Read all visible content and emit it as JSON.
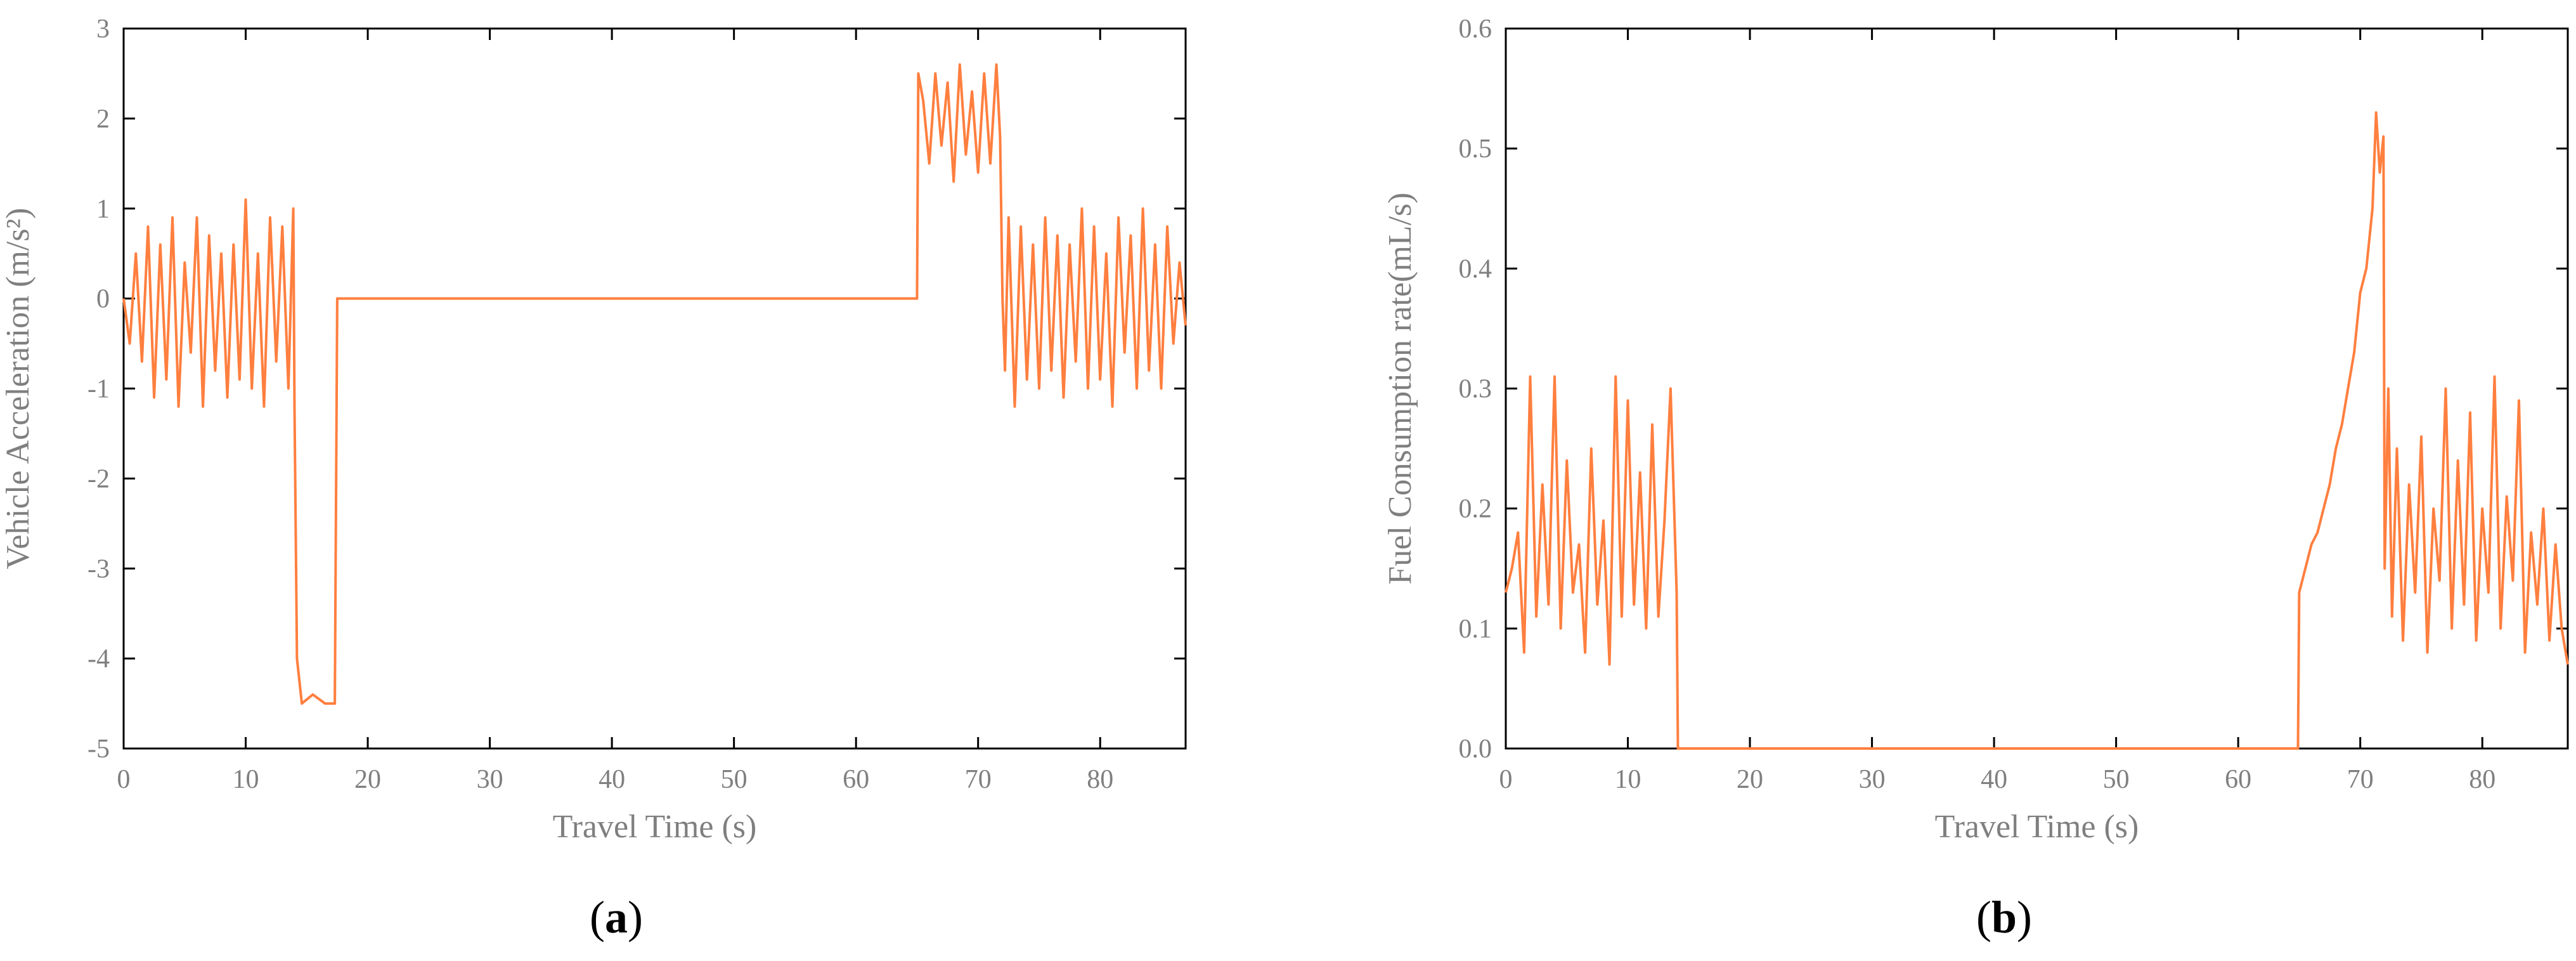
{
  "figure": {
    "captions": [
      "a",
      "b"
    ]
  },
  "chart_data": [
    {
      "type": "line",
      "xlabel": "Travel Time (s)",
      "ylabel": "Vehicle Acceleration (m/s²)",
      "xlim": [
        0,
        87
      ],
      "ylim": [
        -5,
        3
      ],
      "xticks": [
        0,
        10,
        20,
        30,
        40,
        50,
        60,
        70,
        80
      ],
      "yticks": [
        -5,
        -4,
        -3,
        -2,
        -1,
        0,
        1,
        2,
        3
      ],
      "color": "#ff7f3f",
      "series": [
        {
          "x": [
            0,
            0.5,
            1,
            1.5,
            2,
            2.5,
            3,
            3.5,
            4,
            4.5,
            5,
            5.5,
            6,
            6.5,
            7,
            7.5,
            8,
            8.5,
            9,
            9.5,
            10,
            10.5,
            11,
            11.5,
            12,
            12.5,
            13,
            13.5,
            13.9,
            14.0,
            14.2,
            14.6,
            15.5,
            16.5,
            17.0,
            17.3,
            17.5,
            30,
            40,
            50,
            60,
            65.0,
            65.1,
            65.5,
            66,
            66.5,
            67,
            67.5,
            68,
            68.5,
            69,
            69.5,
            70,
            70.5,
            71,
            71.5,
            71.8,
            72.0,
            72.2,
            72.5,
            73,
            73.5,
            74,
            74.5,
            75,
            75.5,
            76,
            76.5,
            77,
            77.5,
            78,
            78.5,
            79,
            79.5,
            80,
            80.5,
            81,
            81.5,
            82,
            82.5,
            83,
            83.5,
            84,
            84.5,
            85,
            85.5,
            86,
            86.5,
            87
          ],
          "y": [
            0.0,
            -0.5,
            0.5,
            -0.7,
            0.8,
            -1.1,
            0.6,
            -0.9,
            0.9,
            -1.2,
            0.4,
            -0.6,
            0.9,
            -1.2,
            0.7,
            -0.8,
            0.5,
            -1.1,
            0.6,
            -0.9,
            1.1,
            -1.0,
            0.5,
            -1.2,
            0.9,
            -0.7,
            0.8,
            -1.0,
            1.0,
            -1.2,
            -4.0,
            -4.5,
            -4.4,
            -4.5,
            -4.5,
            -4.5,
            0.0,
            0.0,
            0.0,
            0.0,
            0.0,
            0.0,
            2.5,
            2.2,
            1.5,
            2.5,
            1.7,
            2.4,
            1.3,
            2.6,
            1.6,
            2.3,
            1.4,
            2.5,
            1.5,
            2.6,
            1.8,
            0.0,
            -0.8,
            0.9,
            -1.2,
            0.8,
            -0.9,
            0.6,
            -1.0,
            0.9,
            -0.8,
            0.7,
            -1.1,
            0.6,
            -0.7,
            1.0,
            -1.0,
            0.8,
            -0.9,
            0.5,
            -1.2,
            0.9,
            -0.6,
            0.7,
            -1.0,
            1.0,
            -0.8,
            0.6,
            -1.0,
            0.8,
            -0.5,
            0.4,
            -0.3
          ]
        }
      ]
    },
    {
      "type": "line",
      "xlabel": "Travel Time (s)",
      "ylabel": "Fuel Consumption rate(mL/s)",
      "xlim": [
        0,
        87
      ],
      "ylim": [
        0,
        0.6
      ],
      "xticks": [
        0,
        10,
        20,
        30,
        40,
        50,
        60,
        70,
        80
      ],
      "yticks": [
        0,
        0.1,
        0.2,
        0.3,
        0.4,
        0.5,
        0.6
      ],
      "color": "#ff7f3f",
      "series": [
        {
          "x": [
            0,
            0.5,
            1,
            1.5,
            2,
            2.5,
            3,
            3.5,
            4,
            4.5,
            5,
            5.5,
            6,
            6.5,
            7,
            7.5,
            8,
            8.5,
            9,
            9.5,
            10,
            10.5,
            11,
            11.5,
            12,
            12.5,
            13,
            13.5,
            14.0,
            14.1,
            20,
            30,
            40,
            50,
            60,
            64.9,
            65.0,
            65.5,
            66,
            66.5,
            67,
            67.5,
            68,
            68.5,
            69,
            69.5,
            70,
            70.5,
            71,
            71.3,
            71.6,
            71.9,
            72.0,
            72.3,
            72.6,
            73,
            73.5,
            74,
            74.5,
            75,
            75.5,
            76,
            76.5,
            77,
            77.5,
            78,
            78.5,
            79,
            79.5,
            80,
            80.5,
            81,
            81.5,
            82,
            82.5,
            83,
            83.5,
            84,
            84.5,
            85,
            85.5,
            86,
            86.5,
            87
          ],
          "y": [
            0.13,
            0.15,
            0.18,
            0.08,
            0.31,
            0.11,
            0.22,
            0.12,
            0.31,
            0.1,
            0.24,
            0.13,
            0.17,
            0.08,
            0.25,
            0.12,
            0.19,
            0.07,
            0.31,
            0.11,
            0.29,
            0.12,
            0.23,
            0.1,
            0.27,
            0.11,
            0.19,
            0.3,
            0.13,
            0.0,
            0.0,
            0.0,
            0.0,
            0.0,
            0.0,
            0.0,
            0.13,
            0.15,
            0.17,
            0.18,
            0.2,
            0.22,
            0.25,
            0.27,
            0.3,
            0.33,
            0.38,
            0.4,
            0.45,
            0.53,
            0.48,
            0.51,
            0.15,
            0.3,
            0.11,
            0.25,
            0.09,
            0.22,
            0.13,
            0.26,
            0.08,
            0.2,
            0.14,
            0.3,
            0.1,
            0.24,
            0.12,
            0.28,
            0.09,
            0.2,
            0.13,
            0.31,
            0.1,
            0.21,
            0.14,
            0.29,
            0.08,
            0.18,
            0.12,
            0.2,
            0.09,
            0.17,
            0.1,
            0.07
          ]
        }
      ]
    }
  ]
}
